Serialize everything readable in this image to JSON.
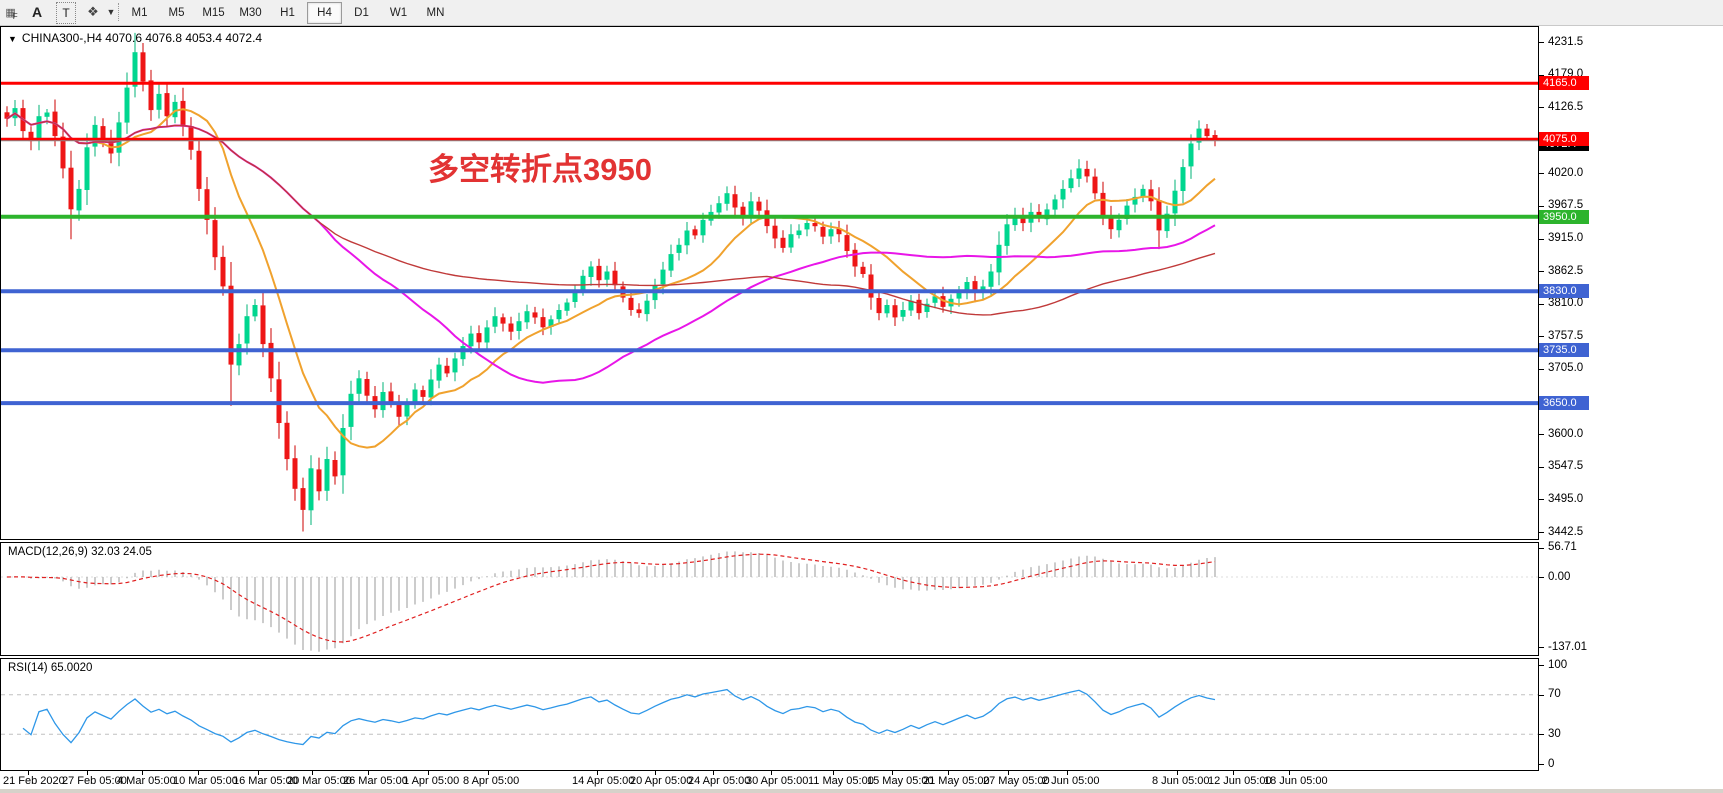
{
  "toolbar": {
    "tools": [
      {
        "name": "indicators-grid-icon",
        "glyph": "▦",
        "sub": "F"
      },
      {
        "name": "text-annotation-icon",
        "glyph": "A"
      },
      {
        "name": "text-label-icon",
        "glyph": "T"
      },
      {
        "name": "arrows-icon",
        "glyph": "❖"
      },
      {
        "name": "dropdown-caret-icon",
        "glyph": "▼"
      }
    ],
    "timeframes": [
      "M1",
      "M5",
      "M15",
      "M30",
      "H1",
      "H4",
      "D1",
      "W1",
      "MN"
    ],
    "active_timeframe": "H4"
  },
  "chart": {
    "title": "CHINA300-,H4  4070.6 4076.8 4053.4 4072.4",
    "dropdown_glyph": "▼"
  },
  "chart_data": {
    "type": "candlestick",
    "symbol": "CHINA300-",
    "timeframe": "H4",
    "last_ohlc": {
      "open": 4070.6,
      "high": 4076.8,
      "low": 4053.4,
      "close": 4072.4
    },
    "annotation": {
      "text": "多空转折点3950",
      "color": "#e23333"
    },
    "price_axis": {
      "min": 3442.5,
      "max": 4231.5,
      "ticks": [
        4231.5,
        4179.0,
        4126.5,
        4020.0,
        3967.5,
        3915.0,
        3862.5,
        3810.0,
        3757.5,
        3705.0,
        3600.0,
        3547.5,
        3495.0,
        3442.5
      ]
    },
    "levels": [
      {
        "price": 4165.0,
        "label": "4165.0",
        "color": "#ff0000",
        "width": 3
      },
      {
        "price": 4075.0,
        "label": "4075.0",
        "color": "#ff0000",
        "width": 3
      },
      {
        "price": 3950.0,
        "label": "3950.0",
        "color": "#2db42d",
        "width": 4
      },
      {
        "price": 3830.0,
        "label": "3830.0",
        "color": "#3f63d2",
        "width": 4
      },
      {
        "price": 3735.0,
        "label": "3735.0",
        "color": "#3f63d2",
        "width": 4
      },
      {
        "price": 3650.0,
        "label": "3650.0",
        "color": "#3f63d2",
        "width": 4
      }
    ],
    "current_price": {
      "value": 4072.4,
      "label": "4072.4",
      "badge_color": "#000000"
    },
    "candles": {
      "bull_color": "#00d68f",
      "bull_wick": "#00b377",
      "bear_color": "#ee1616",
      "bear_wick": "#cc0000",
      "closes": [
        4108,
        4125,
        4088,
        4072,
        4112,
        4118,
        4080,
        4028,
        3962,
        3995,
        4062,
        4098,
        4075,
        4052,
        4102,
        4158,
        4215,
        4168,
        4122,
        4148,
        4112,
        4135,
        4095,
        4058,
        3995,
        3945,
        3885,
        3838,
        3712,
        3745,
        3790,
        3808,
        3745,
        3690,
        3618,
        3560,
        3512,
        3478,
        3545,
        3508,
        3560,
        3532,
        3610,
        3665,
        3690,
        3662,
        3640,
        3668,
        3652,
        3628,
        3648,
        3672,
        3660,
        3688,
        3712,
        3698,
        3722,
        3742,
        3762,
        3748,
        3772,
        3790,
        3778,
        3765,
        3782,
        3798,
        3788,
        3772,
        3785,
        3800,
        3812,
        3832,
        3855,
        3870,
        3848,
        3862,
        3840,
        3820,
        3800,
        3795,
        3815,
        3840,
        3865,
        3890,
        3905,
        3928,
        3920,
        3945,
        3958,
        3972,
        3988,
        3965,
        3950,
        3975,
        3960,
        3935,
        3915,
        3900,
        3922,
        3928,
        3940,
        3935,
        3918,
        3930,
        3922,
        3895,
        3870,
        3858,
        3820,
        3795,
        3808,
        3788,
        3800,
        3815,
        3795,
        3810,
        3822,
        3805,
        3818,
        3832,
        3845,
        3828,
        3838,
        3862,
        3905,
        3938,
        3952,
        3940,
        3958,
        3948,
        3962,
        3978,
        3995,
        4012,
        4028,
        4015,
        3988,
        3952,
        3930,
        3945,
        3968,
        3982,
        3995,
        3975,
        3928,
        3955,
        3992,
        4030,
        4068,
        4092,
        4080,
        4072.4
      ]
    },
    "moving_averages": [
      {
        "name": "fast-ma",
        "period": 12,
        "color": "#f0a22e",
        "stroke": 2
      },
      {
        "name": "medium-ma",
        "period": 40,
        "color": "#e816e8",
        "stroke": 2
      },
      {
        "name": "slow-ma",
        "period": 96,
        "color": "#c03a3a",
        "stroke": 1.4
      }
    ],
    "x_axis": {
      "labels": [
        "21 Feb 2020",
        "27 Feb 05:00",
        "4 Mar 05:00",
        "10 Mar 05:00",
        "16 Mar 05:00",
        "20 Mar 05:00",
        "26 Mar 05:00",
        "1 Apr 05:00",
        "8 Apr 05:00",
        "14 Apr 05:00",
        "20 Apr 05:00",
        "24 Apr 05:00",
        "30 Apr 05:00",
        "11 May 05:00",
        "15 May 05:00",
        "21 May 05:00",
        "27 May 05:00",
        "2 Jun 05:00",
        "8 Jun 05:00",
        "12 Jun 05:00",
        "18 Jun 05:00"
      ],
      "positions": [
        3,
        62,
        117,
        173,
        233,
        287,
        343,
        403,
        463,
        572,
        630,
        688,
        746,
        808,
        867,
        923,
        983,
        1042,
        1152,
        1208,
        1264
      ]
    },
    "macd": {
      "label": "MACD(12,26,9) 32.03 24.05",
      "fast": 12,
      "slow": 26,
      "signal": 9,
      "value": 32.03,
      "signal_value": 24.05,
      "axis_ticks": [
        56.71,
        0.0,
        -137.01
      ],
      "histogram_color": "#9a9a9a",
      "signal_color": "#e02020"
    },
    "rsi": {
      "label": "RSI(14) 65.0020",
      "period": 14,
      "value": 65.002,
      "axis_ticks": [
        100,
        70,
        30,
        0
      ],
      "overbought": 70,
      "oversold": 30,
      "line_color": "#2e97e8",
      "grid_color": "#c0c0c0"
    }
  }
}
